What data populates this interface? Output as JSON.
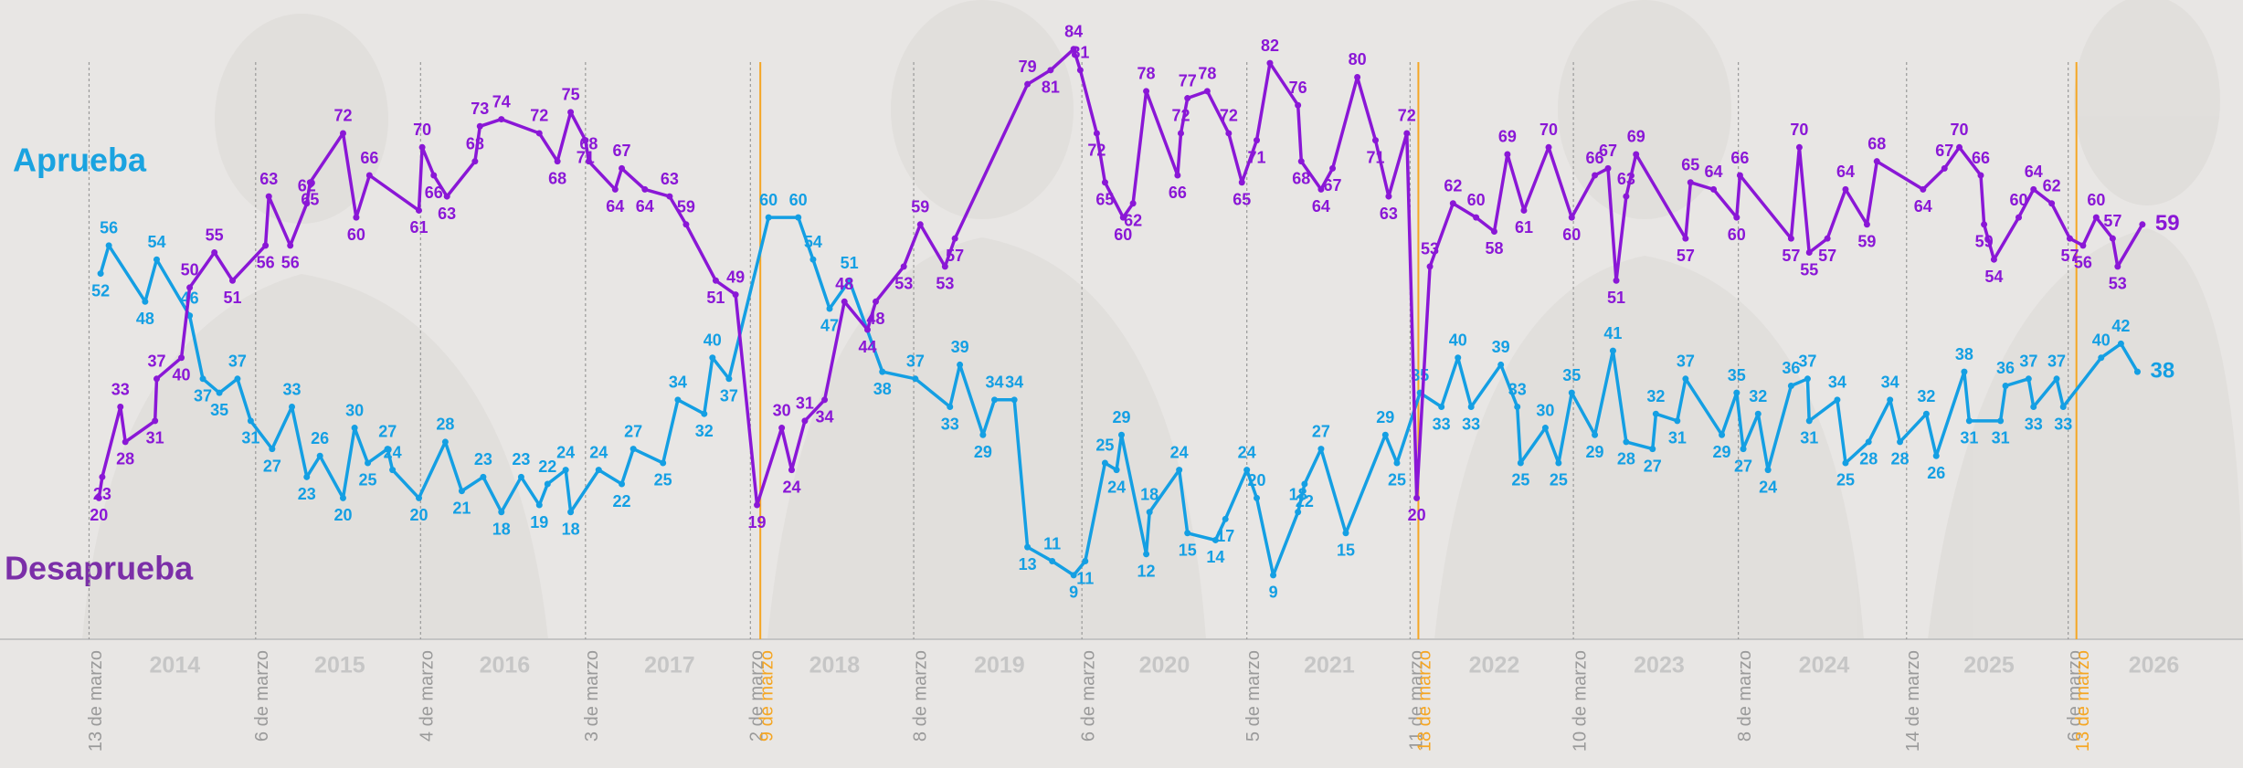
{
  "chart_data": {
    "type": "line",
    "xlim": [
      2013.65,
      2027.25
    ],
    "ylim": [
      0,
      91
    ],
    "xticks": [
      {
        "value": 2014.71,
        "label": "2014"
      },
      {
        "value": 2015.71,
        "label": "2015"
      },
      {
        "value": 2016.71,
        "label": "2016"
      },
      {
        "value": 2017.71,
        "label": "2017"
      },
      {
        "value": 2018.71,
        "label": "2018"
      },
      {
        "value": 2019.71,
        "label": "2019"
      },
      {
        "value": 2020.71,
        "label": "2020"
      },
      {
        "value": 2021.71,
        "label": "2021"
      },
      {
        "value": 2022.71,
        "label": "2022"
      },
      {
        "value": 2023.71,
        "label": "2023"
      },
      {
        "value": 2024.71,
        "label": "2024"
      },
      {
        "value": 2025.71,
        "label": "2025"
      },
      {
        "value": 2026.71,
        "label": "2026"
      }
    ],
    "events": [
      {
        "x": 2014.19,
        "label": "13 de marzo",
        "color": "#9a9a9a"
      },
      {
        "x": 2015.2,
        "label": "6 de marzo",
        "color": "#9a9a9a"
      },
      {
        "x": 2016.2,
        "label": "4 de marzo",
        "color": "#9a9a9a"
      },
      {
        "x": 2017.2,
        "label": "3 de marzo",
        "color": "#9a9a9a"
      },
      {
        "x": 2018.2,
        "label": "2 de marzo",
        "color": "#9a9a9a"
      },
      {
        "x": 2018.26,
        "label": "9 de marzo",
        "color": "#f5a623"
      },
      {
        "x": 2019.19,
        "label": "8 de marzo",
        "color": "#9a9a9a"
      },
      {
        "x": 2020.21,
        "label": "6 de marzo",
        "color": "#9a9a9a"
      },
      {
        "x": 2021.21,
        "label": "5 de marzo",
        "color": "#9a9a9a"
      },
      {
        "x": 2022.2,
        "label": "11 de marzo",
        "color": "#9a9a9a"
      },
      {
        "x": 2022.25,
        "label": "18 de marzo",
        "color": "#f5a623"
      },
      {
        "x": 2023.19,
        "label": "10 de marzo",
        "color": "#9a9a9a"
      },
      {
        "x": 2024.19,
        "label": "8 de marzo",
        "color": "#9a9a9a"
      },
      {
        "x": 2025.21,
        "label": "14 de marzo",
        "color": "#9a9a9a"
      },
      {
        "x": 2026.19,
        "label": "6 de marzo",
        "color": "#9a9a9a"
      },
      {
        "x": 2026.24,
        "label": "13 de marzo",
        "color": "#f5a623"
      }
    ],
    "series": [
      {
        "name": "Aprueba",
        "color": "#149fe3",
        "x": [
          2014.26,
          2014.31,
          2014.53,
          2014.6,
          2014.8,
          2014.88,
          2014.98,
          2015.09,
          2015.17,
          2015.3,
          2015.42,
          2015.51,
          2015.59,
          2015.73,
          2015.8,
          2015.88,
          2016.0,
          2016.03,
          2016.19,
          2016.35,
          2016.45,
          2016.58,
          2016.69,
          2016.81,
          2016.92,
          2016.97,
          2017.08,
          2017.11,
          2017.28,
          2017.42,
          2017.49,
          2017.67,
          2017.76,
          2017.92,
          2017.97,
          2018.07,
          2018.31,
          2018.49,
          2018.58,
          2018.68,
          2018.8,
          2019.0,
          2019.2,
          2019.41,
          2019.47,
          2019.61,
          2019.68,
          2019.8,
          2019.88,
          2020.03,
          2020.16,
          2020.23,
          2020.35,
          2020.42,
          2020.45,
          2020.6,
          2020.62,
          2020.8,
          2020.85,
          2021.02,
          2021.08,
          2021.21,
          2021.27,
          2021.37,
          2021.52,
          2021.56,
          2021.66,
          2021.81,
          2022.05,
          2022.12,
          2022.26,
          2022.39,
          2022.49,
          2022.57,
          2022.75,
          2022.85,
          2022.87,
          2023.02,
          2023.1,
          2023.18,
          2023.32,
          2023.43,
          2023.51,
          2023.67,
          2023.69,
          2023.82,
          2023.87,
          2024.09,
          2024.18,
          2024.22,
          2024.31,
          2024.37,
          2024.51,
          2024.61,
          2024.62,
          2024.79,
          2024.84,
          2024.98,
          2025.11,
          2025.17,
          2025.33,
          2025.39,
          2025.56,
          2025.59,
          2025.78,
          2025.81,
          2025.95,
          2025.98,
          2026.12,
          2026.16,
          2026.39,
          2026.51,
          2026.61
        ],
        "values": [
          52,
          56,
          48,
          54,
          46,
          37,
          35,
          37,
          31,
          27,
          33,
          23,
          26,
          20,
          30,
          25,
          27,
          24,
          20,
          28,
          21,
          23,
          18,
          23,
          19,
          22,
          24,
          18,
          24,
          22,
          27,
          25,
          34,
          32,
          40,
          37,
          60,
          60,
          54,
          47,
          51,
          38,
          37,
          33,
          39,
          29,
          34,
          34,
          13,
          11,
          9,
          11,
          25,
          24,
          29,
          12,
          18,
          24,
          15,
          14,
          17,
          24,
          20,
          9,
          18,
          22,
          27,
          15,
          29,
          25,
          35,
          33,
          40,
          33,
          39,
          33,
          25,
          30,
          25,
          35,
          29,
          41,
          28,
          27,
          32,
          31,
          37,
          29,
          35,
          27,
          32,
          24,
          36,
          37,
          31,
          34,
          25,
          28,
          34,
          28,
          32,
          26,
          38,
          31,
          31,
          36,
          37,
          33,
          37,
          33,
          40,
          42,
          38
        ]
      },
      {
        "name": "Desaprueba",
        "color": "#8a17d6",
        "x": [
          2014.25,
          2014.27,
          2014.38,
          2014.41,
          2014.59,
          2014.6,
          2014.75,
          2014.8,
          2014.95,
          2015.06,
          2015.26,
          2015.28,
          2015.41,
          2015.51,
          2015.53,
          2015.73,
          2015.81,
          2015.89,
          2016.19,
          2016.21,
          2016.28,
          2016.36,
          2016.53,
          2016.56,
          2016.69,
          2016.92,
          2017.03,
          2017.11,
          2017.2,
          2017.22,
          2017.38,
          2017.42,
          2017.56,
          2017.71,
          2017.81,
          2017.99,
          2018.11,
          2018.24,
          2018.39,
          2018.45,
          2018.53,
          2018.65,
          2018.77,
          2018.91,
          2018.96,
          2019.13,
          2019.23,
          2019.38,
          2019.44,
          2019.88,
          2020.02,
          2020.16,
          2020.2,
          2020.3,
          2020.35,
          2020.46,
          2020.52,
          2020.6,
          2020.79,
          2020.81,
          2020.85,
          2020.97,
          2021.1,
          2021.18,
          2021.27,
          2021.35,
          2021.52,
          2021.54,
          2021.66,
          2021.73,
          2021.88,
          2021.99,
          2022.07,
          2022.18,
          2022.24,
          2022.32,
          2022.46,
          2022.6,
          2022.71,
          2022.79,
          2022.89,
          2023.04,
          2023.18,
          2023.32,
          2023.4,
          2023.45,
          2023.51,
          2023.57,
          2023.87,
          2023.9,
          2024.04,
          2024.18,
          2024.2,
          2024.51,
          2024.56,
          2024.62,
          2024.73,
          2024.84,
          2024.97,
          2025.03,
          2025.31,
          2025.44,
          2025.53,
          2025.66,
          2025.68,
          2025.74,
          2025.89,
          2025.98,
          2026.09,
          2026.2,
          2026.28,
          2026.36,
          2026.46,
          2026.49,
          2026.64
        ],
        "values": [
          20,
          23,
          33,
          28,
          31,
          37,
          40,
          50,
          55,
          51,
          56,
          63,
          56,
          62,
          65,
          72,
          60,
          66,
          61,
          70,
          66,
          63,
          68,
          73,
          74,
          72,
          68,
          75,
          71,
          68,
          64,
          67,
          64,
          63,
          59,
          51,
          49,
          19,
          30,
          24,
          31,
          34,
          48,
          44,
          48,
          53,
          59,
          53,
          57,
          79,
          81,
          84,
          81,
          72,
          65,
          60,
          62,
          78,
          66,
          72,
          77,
          78,
          72,
          65,
          71,
          82,
          76,
          68,
          64,
          67,
          80,
          71,
          63,
          72,
          20,
          53,
          62,
          60,
          58,
          69,
          61,
          70,
          60,
          66,
          67,
          51,
          63,
          69,
          57,
          65,
          64,
          60,
          66,
          57,
          70,
          55,
          57,
          64,
          59,
          68,
          64,
          67,
          70,
          66,
          59,
          54,
          60,
          64,
          62,
          57,
          56,
          60,
          57,
          53,
          59
        ]
      }
    ]
  }
}
